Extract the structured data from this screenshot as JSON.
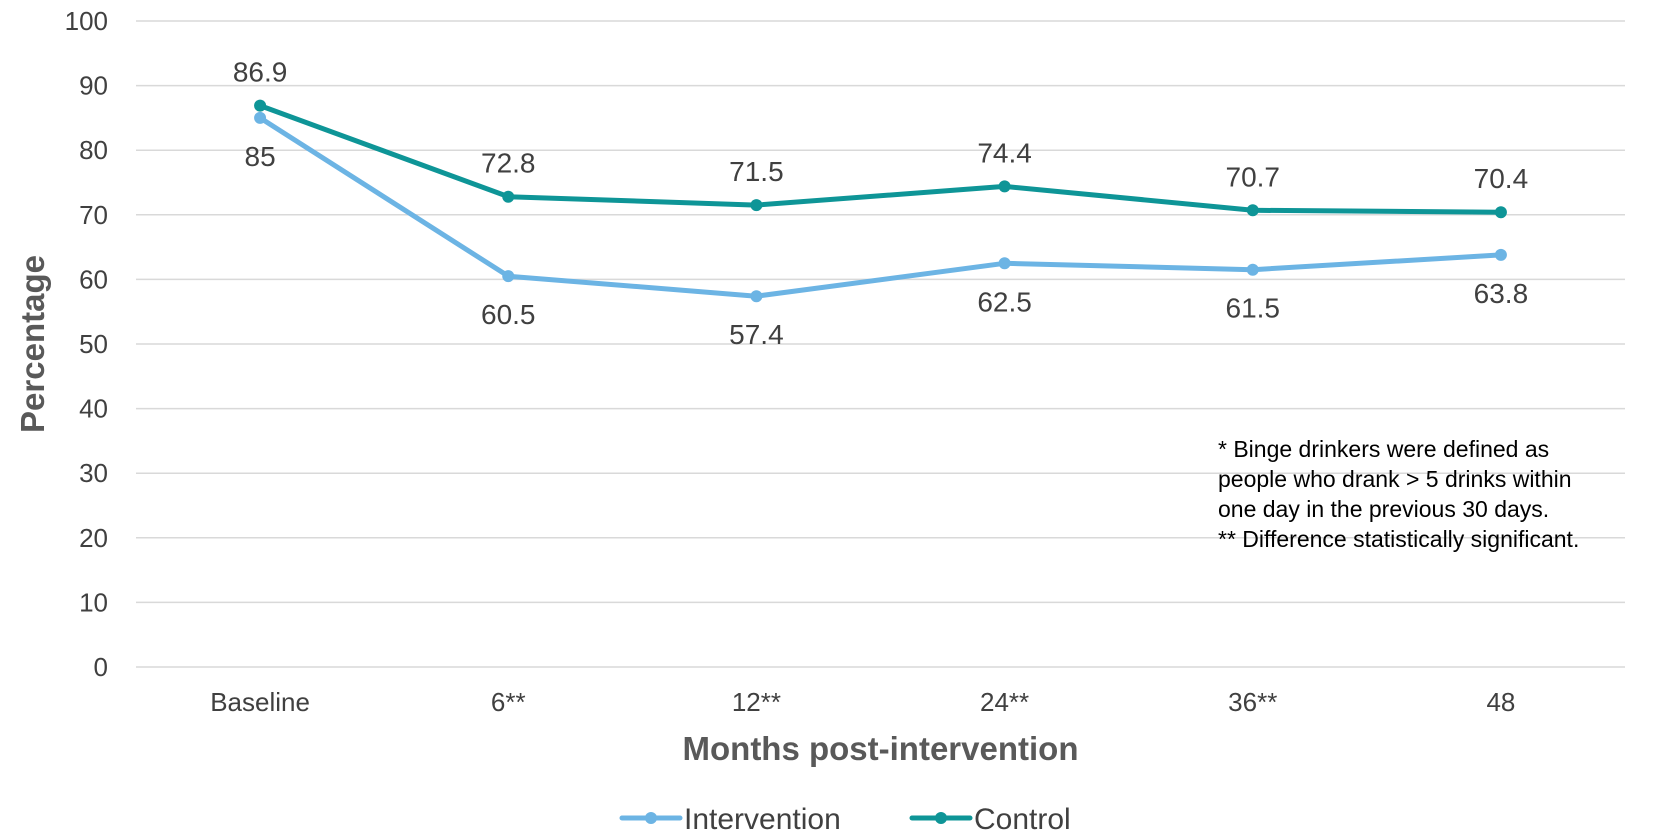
{
  "chart_data": {
    "type": "line",
    "title": "",
    "xlabel": "Months post-intervention",
    "ylabel": "Percentage",
    "categories": [
      "Baseline",
      "6**",
      "12**",
      "24**",
      "36**",
      "48"
    ],
    "ylim": [
      0,
      100
    ],
    "yticks": [
      0,
      10,
      20,
      30,
      40,
      50,
      60,
      70,
      80,
      90,
      100
    ],
    "grid": true,
    "legend_position": "bottom",
    "series": [
      {
        "name": "Intervention",
        "color": "#6CB4E4",
        "values": [
          85,
          60.5,
          57.4,
          62.5,
          61.5,
          63.8
        ],
        "label_placement": "below",
        "data_labels": [
          "85",
          "60.5",
          "57.4",
          "62.5",
          "61.5",
          "63.8"
        ]
      },
      {
        "name": "Control",
        "color": "#0E9597",
        "values": [
          86.9,
          72.8,
          71.5,
          74.4,
          70.7,
          70.4
        ],
        "label_placement": "above",
        "data_labels": [
          "86.9",
          "72.8",
          "71.5",
          "74.4",
          "70.7",
          "70.4"
        ]
      }
    ],
    "annotations": [
      "* Binge drinkers were defined as",
      "people who drank > 5 drinks within",
      "one day in the previous 30 days.",
      "** Difference statistically significant."
    ]
  }
}
